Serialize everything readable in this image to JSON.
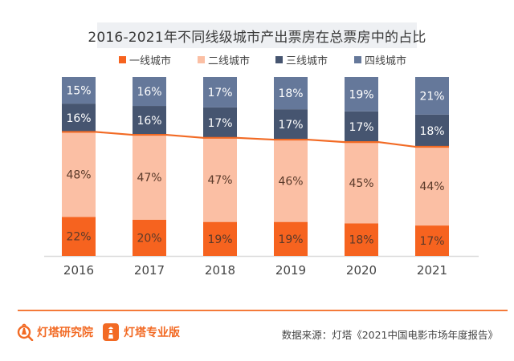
{
  "header": {
    "title": "2016-2021年不同线级城市产出票房在总票房中的占比"
  },
  "colors": {
    "tier1": "#f6631f",
    "tier2": "#fbbfa4",
    "tier3": "#465570",
    "tier4": "#65789a",
    "line": "#f26a24",
    "axis": "#d9d9d9",
    "label_dark": "#5a3a2a",
    "label_light": "#ffffff"
  },
  "chart_data": {
    "type": "bar",
    "stacked": true,
    "title": "2016-2021年不同线级城市产出票房在总票房中的占比",
    "xlabel": "",
    "ylabel": "",
    "categories": [
      "2016",
      "2017",
      "2018",
      "2019",
      "2020",
      "2021"
    ],
    "series": [
      {
        "name": "一线城市",
        "values": [
          22,
          20,
          19,
          19,
          18,
          17
        ],
        "unit": "%"
      },
      {
        "name": "二线城市",
        "values": [
          48,
          47,
          47,
          46,
          45,
          44
        ],
        "unit": "%"
      },
      {
        "name": "三线城市",
        "values": [
          16,
          16,
          17,
          17,
          17,
          18
        ],
        "unit": "%"
      },
      {
        "name": "四线城市",
        "values": [
          15,
          16,
          17,
          18,
          19,
          21
        ],
        "unit": "%"
      }
    ],
    "overlay_line": {
      "description": "cumulative 一线+二线 share, drawn along the top of the 二线城市 segment",
      "values": [
        70,
        67,
        66,
        65,
        63,
        61
      ]
    },
    "legend_position": "top-center",
    "grid": false
  },
  "footer": {
    "logo1": "灯塔研究院",
    "logo2": "灯塔专业版",
    "source": "数据来源：灯塔《2021中国电影市场年度报告》"
  }
}
